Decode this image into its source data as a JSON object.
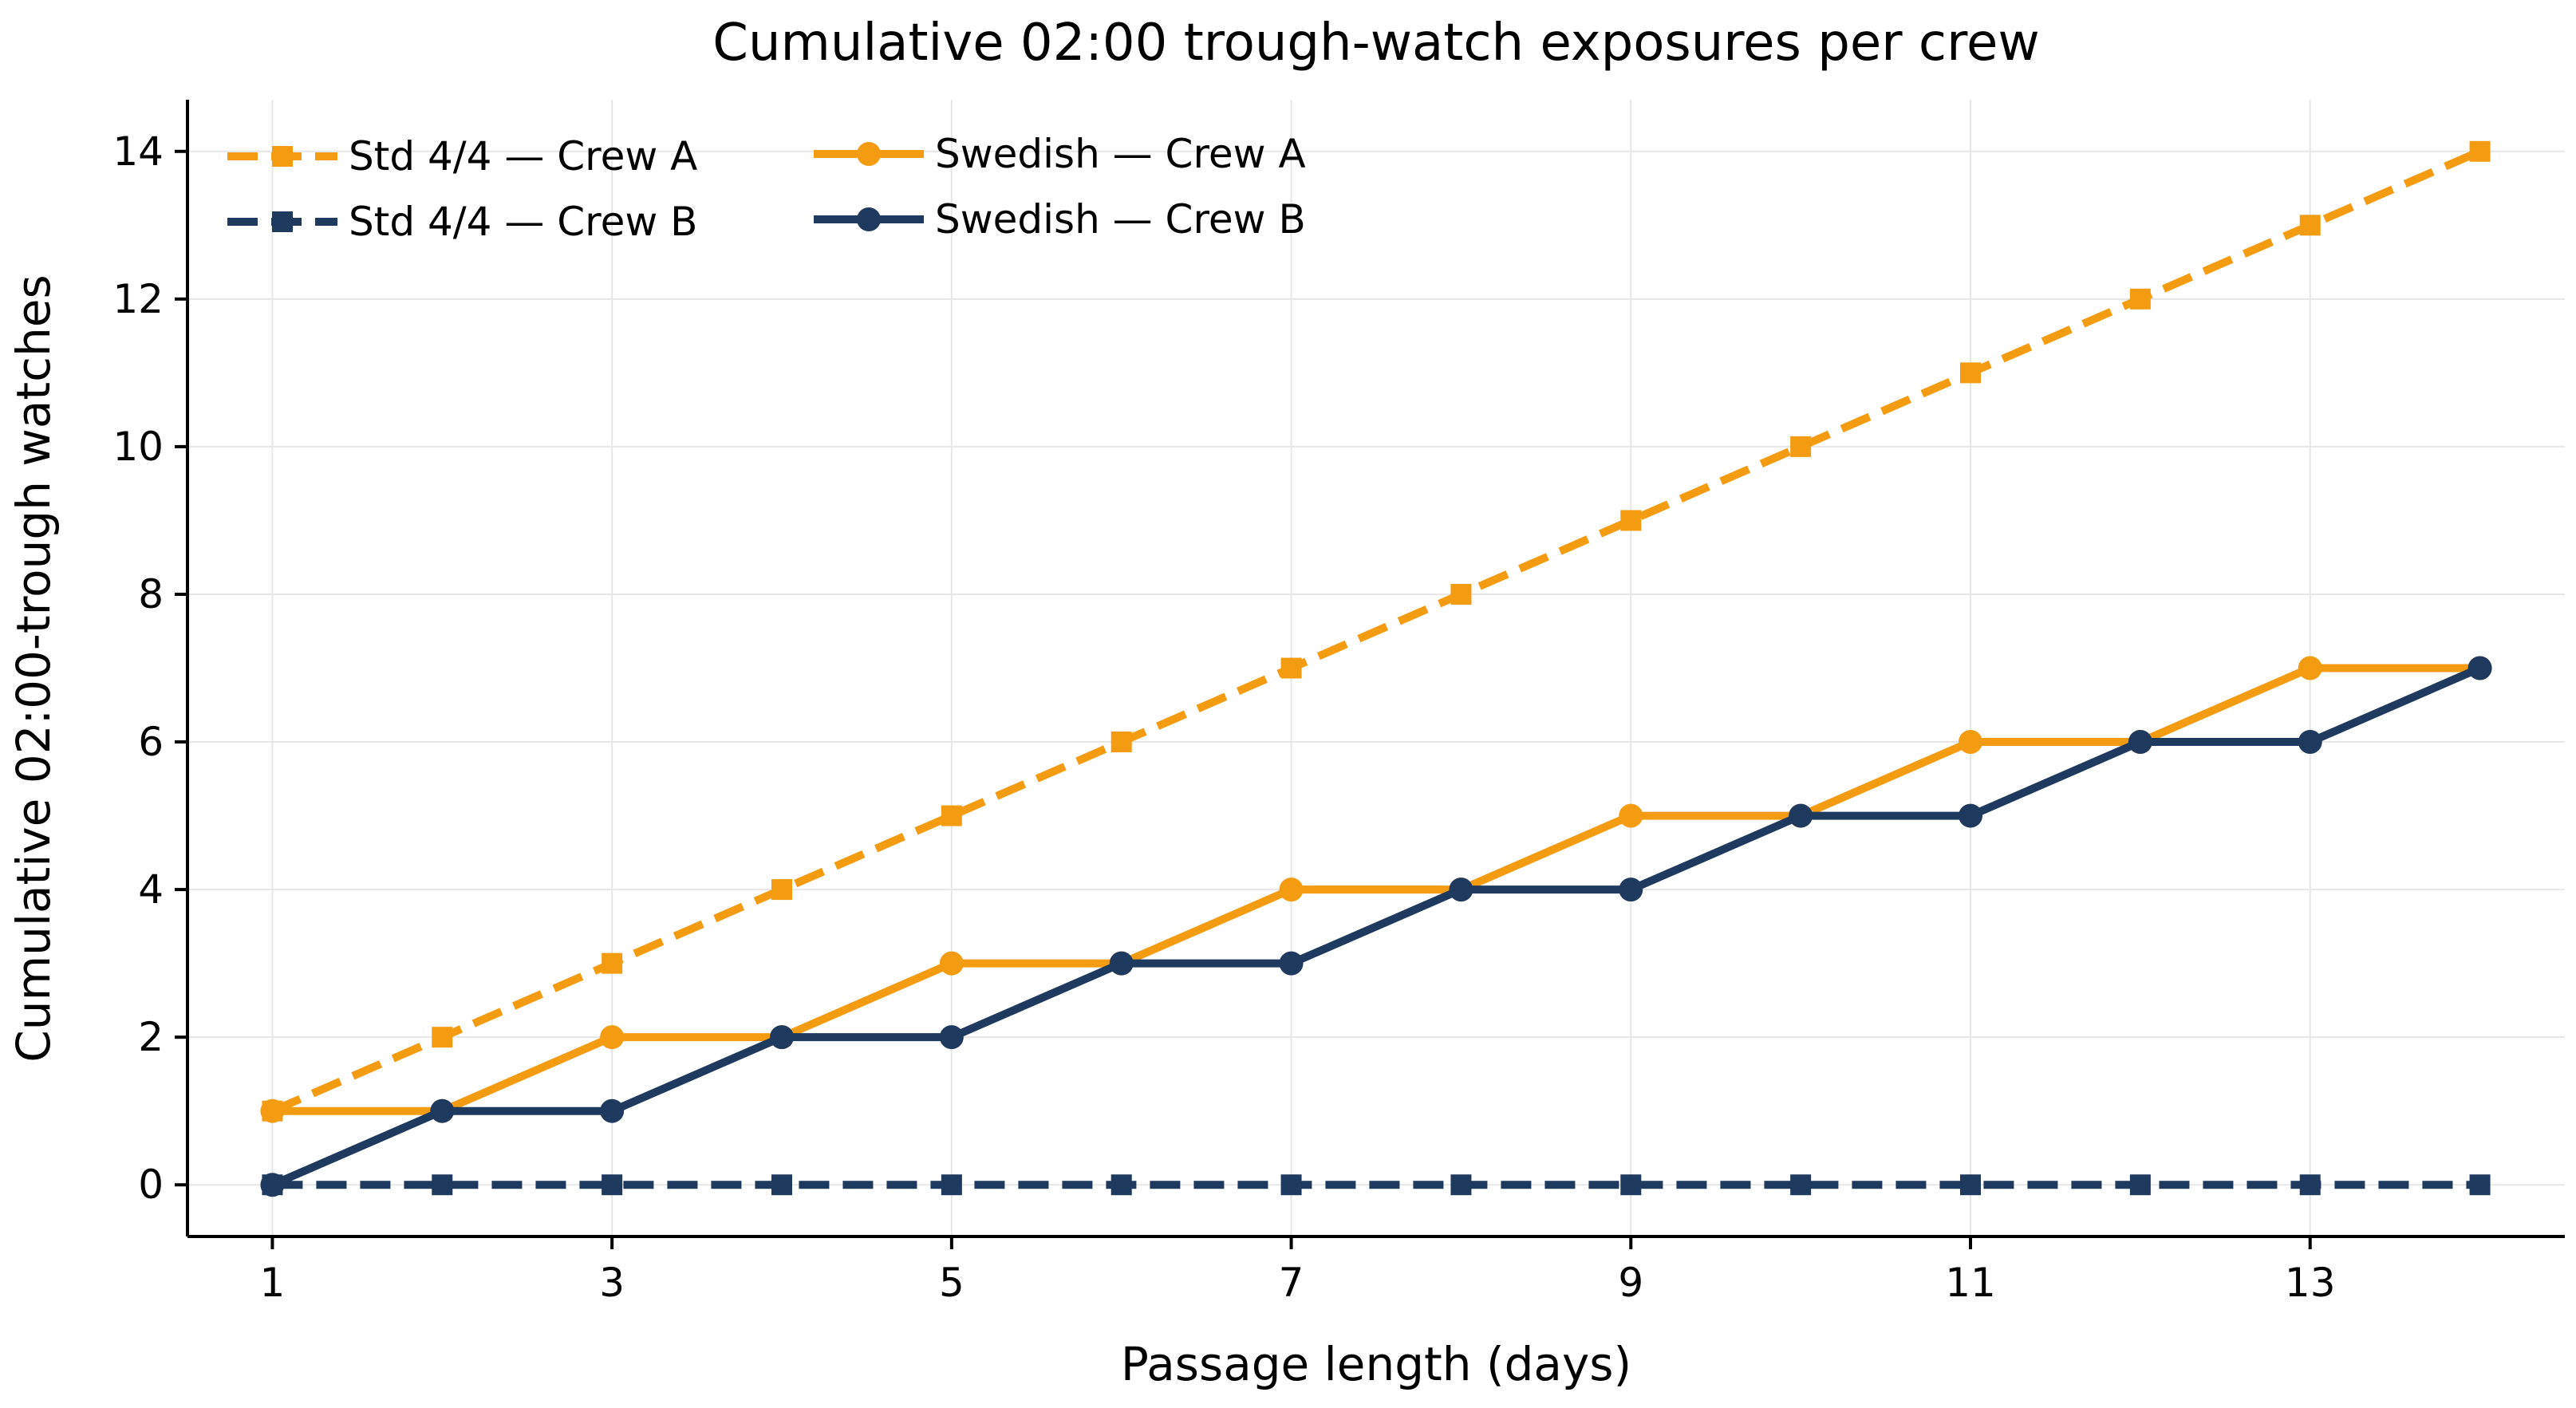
{
  "chart_data": {
    "type": "line",
    "title": "Cumulative 02:00 trough-watch exposures per crew",
    "xlabel": "Passage length (days)",
    "ylabel": "Cumulative 02:00-trough watches",
    "x": [
      1,
      2,
      3,
      4,
      5,
      6,
      7,
      8,
      9,
      10,
      11,
      12,
      13,
      14
    ],
    "xticks": [
      1,
      3,
      5,
      7,
      9,
      11,
      13
    ],
    "yticks": [
      0,
      2,
      4,
      6,
      8,
      10,
      12,
      14
    ],
    "xlim": [
      0.5,
      14.5
    ],
    "ylim": [
      -0.7,
      14.7
    ],
    "grid": true,
    "legend_position": "top-left",
    "series": [
      {
        "name": "Std 4/4 — Crew A",
        "values": [
          1,
          2,
          3,
          4,
          5,
          6,
          7,
          8,
          9,
          10,
          11,
          12,
          13,
          14
        ],
        "color": "#F39C12",
        "style": "dashed",
        "marker": "square"
      },
      {
        "name": "Std 4/4 — Crew B",
        "values": [
          0,
          0,
          0,
          0,
          0,
          0,
          0,
          0,
          0,
          0,
          0,
          0,
          0,
          0
        ],
        "color": "#1F3A5F",
        "style": "dashed",
        "marker": "square"
      },
      {
        "name": "Swedish — Crew A",
        "values": [
          1,
          1,
          2,
          2,
          3,
          3,
          4,
          4,
          5,
          5,
          6,
          6,
          7,
          7
        ],
        "color": "#F39C12",
        "style": "solid",
        "marker": "circle"
      },
      {
        "name": "Swedish — Crew B",
        "values": [
          0,
          1,
          1,
          2,
          2,
          3,
          3,
          4,
          4,
          5,
          5,
          6,
          6,
          7
        ],
        "color": "#1F3A5F",
        "style": "solid",
        "marker": "circle"
      }
    ]
  }
}
